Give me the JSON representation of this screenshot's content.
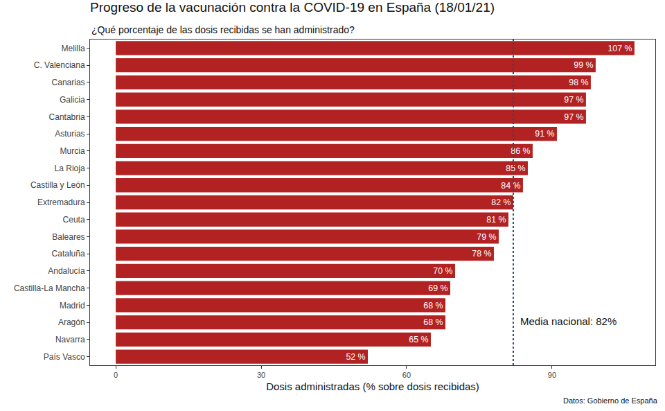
{
  "chart_data": {
    "type": "bar",
    "orientation": "horizontal",
    "title": "Progreso de la vacunación contra la COVID-19 en España (18/01/21)",
    "subtitle": "¿Qué porcentaje de las dosis recibidas se han administrado?",
    "x_label": "Dosis administradas (% sobre dosis recibidas)",
    "source": "Datos: Gobierno de España",
    "categories": [
      "Melilla",
      "C. Valenciana",
      "Canarias",
      "Galicia",
      "Cantabria",
      "Asturias",
      "Murcia",
      "La Rioja",
      "Castilla y León",
      "Extremadura",
      "Ceuta",
      "Baleares",
      "Cataluña",
      "Andalucía",
      "Castilla-La Mancha",
      "Madrid",
      "Aragón",
      "Navarra",
      "País Vasco"
    ],
    "values": [
      107,
      99,
      98,
      97,
      97,
      91,
      86,
      85,
      84,
      82,
      81,
      79,
      78,
      70,
      69,
      68,
      68,
      65,
      52
    ],
    "value_labels": [
      "107 %",
      "99 %",
      "98 %",
      "97 %",
      "97 %",
      "91 %",
      "86 %",
      "85 %",
      "84 %",
      "82 %",
      "81 %",
      "79 %",
      "78 %",
      "70 %",
      "69 %",
      "68 %",
      "68 %",
      "65 %",
      "52 %"
    ],
    "data_labels": true,
    "color": "#b22222",
    "xlim": [
      -5.3,
      111.3
    ],
    "xticks": [
      0,
      30,
      60,
      90
    ],
    "grid": false,
    "mean_line": {
      "value": 82,
      "label": "Media nacional: 82%"
    }
  }
}
